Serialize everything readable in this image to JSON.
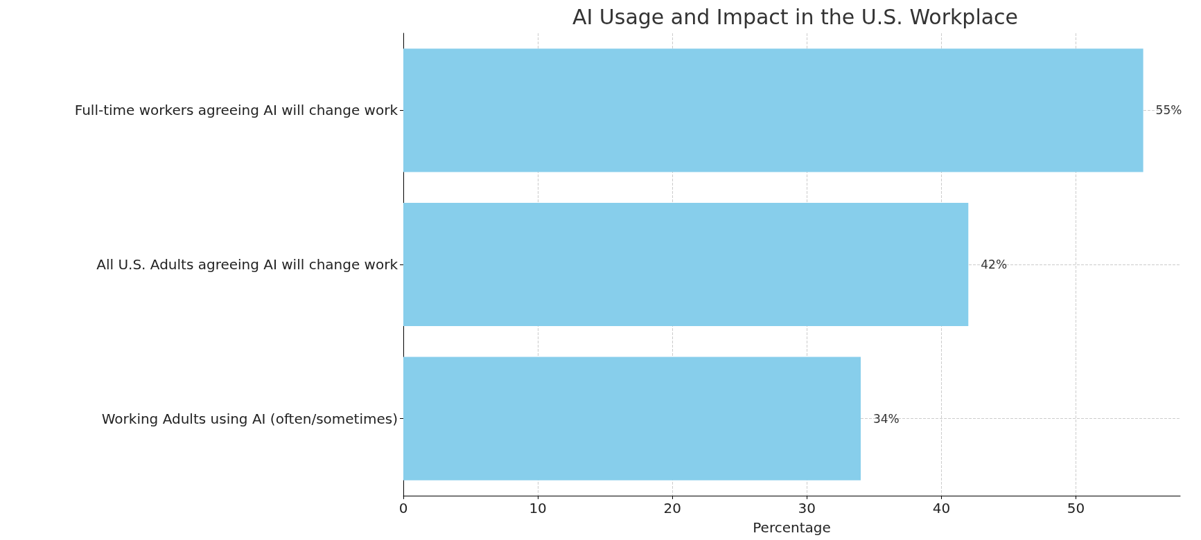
{
  "chart_data": {
    "type": "bar",
    "orientation": "horizontal",
    "title": "AI Usage and Impact in the U.S. Workplace",
    "xlabel": "Percentage",
    "categories": [
      "Full-time workers agreeing AI will change work",
      "All U.S. Adults agreeing AI will change work",
      "Working Adults using AI (often/sometimes)"
    ],
    "values": [
      55,
      42,
      34
    ],
    "color": "#87ceeb",
    "value_labels": [
      "55%",
      "42%",
      "34%"
    ],
    "xlim": [
      0,
      57.75
    ],
    "xticks": [
      0,
      10,
      20,
      30,
      40,
      50
    ],
    "grid": true
  }
}
